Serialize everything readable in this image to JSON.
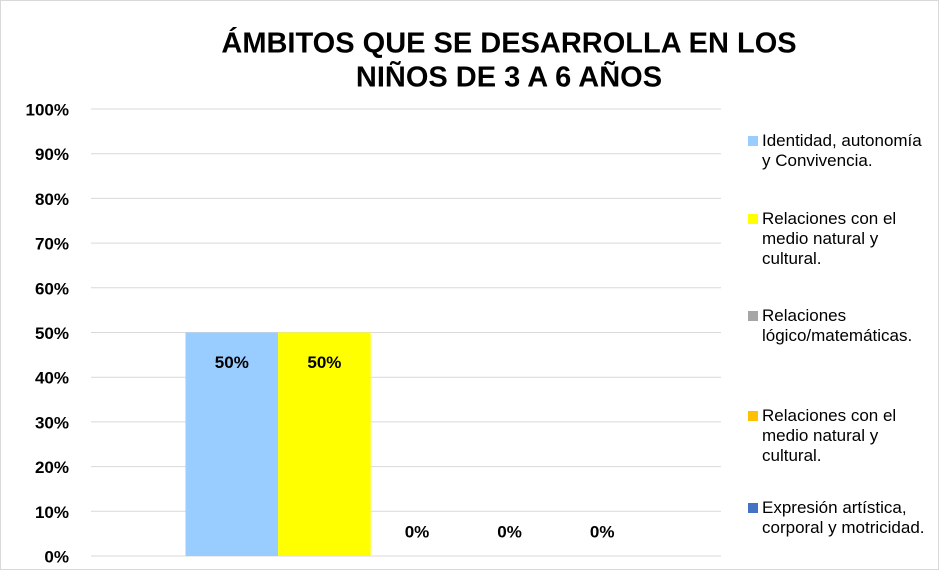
{
  "chart_data": {
    "type": "bar",
    "title": [
      "ÁMBITOS QUE SE DESARROLLA EN LOS",
      "NIÑOS DE 3 A 6 AÑOS"
    ],
    "categories": [
      null
    ],
    "series": [
      {
        "name": "Identidad, autonomía y Convivencia.",
        "color": "#99ccff",
        "values": [
          50
        ],
        "value_labels": [
          "50%"
        ]
      },
      {
        "name": "Relaciones con el medio natural y cultural.",
        "color": "#ffff00",
        "values": [
          50
        ],
        "value_labels": [
          "50%"
        ]
      },
      {
        "name": "Relaciones lógico/matemáticas.",
        "color": "#a6a6a6",
        "values": [
          0
        ],
        "value_labels": [
          "0%"
        ]
      },
      {
        "name": "Relaciones con el medio natural y cultural.",
        "color": "#ffc000",
        "values": [
          0
        ],
        "value_labels": [
          "0%"
        ]
      },
      {
        "name": "Expresión artística, corporal y motricidad.",
        "color": "#4472c4",
        "values": [
          0
        ],
        "value_labels": [
          "0%"
        ]
      }
    ],
    "ylim": [
      0,
      100
    ],
    "yticks": [
      {
        "value": 0,
        "label": "0%"
      },
      {
        "value": 10,
        "label": "10%"
      },
      {
        "value": 20,
        "label": "20%"
      },
      {
        "value": 30,
        "label": "30%"
      },
      {
        "value": 40,
        "label": "40%"
      },
      {
        "value": 50,
        "label": "50%"
      },
      {
        "value": 60,
        "label": "60%"
      },
      {
        "value": 70,
        "label": "70%"
      },
      {
        "value": 80,
        "label": "80%"
      },
      {
        "value": 90,
        "label": "90%"
      },
      {
        "value": 100,
        "label": "100%"
      }
    ],
    "grid": true,
    "legend": "right"
  }
}
